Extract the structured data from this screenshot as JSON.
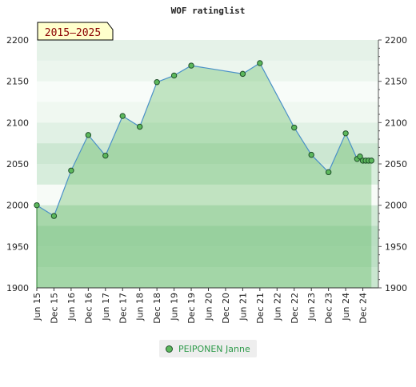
{
  "chart_data": {
    "type": "area",
    "title": "WOF ratinglist",
    "period_label": "2015–2025",
    "ylim": [
      1900,
      2200
    ],
    "y_ticks": [
      1900,
      1950,
      2000,
      2050,
      2100,
      2150,
      2200
    ],
    "x_tick_labels": [
      "Jun 15",
      "Dec 15",
      "Jun 16",
      "Dec 16",
      "Jun 17",
      "Dec 17",
      "Jun 18",
      "Dec 18",
      "Jun 19",
      "Dec 19",
      "Jun 20",
      "Dec 20",
      "Jun 21",
      "Dec 21",
      "Jun 22",
      "Dec 22",
      "Jun 23",
      "Dec 23",
      "Jun 24",
      "Dec 24"
    ],
    "legend_position": "bottom-center",
    "series": [
      {
        "name": "PEIPONEN Janne",
        "color": "#5cb85c",
        "line_color": "#4a90c8",
        "points": [
          {
            "x": "Jun 15",
            "y": 2000
          },
          {
            "x": "Dec 15",
            "y": 1987
          },
          {
            "x": "Jun 16",
            "y": 2042
          },
          {
            "x": "Dec 16",
            "y": 2085
          },
          {
            "x": "Jun 17",
            "y": 2060
          },
          {
            "x": "Dec 17",
            "y": 2108
          },
          {
            "x": "Jun 18",
            "y": 2095
          },
          {
            "x": "Dec 18",
            "y": 2149
          },
          {
            "x": "Jun 19",
            "y": 2157
          },
          {
            "x": "Dec 19",
            "y": 2169
          },
          {
            "x": "Jun 21",
            "y": 2159
          },
          {
            "x": "Dec 21",
            "y": 2172
          },
          {
            "x": "Dec 22",
            "y": 2094
          },
          {
            "x": "Jun 23",
            "y": 2061
          },
          {
            "x": "Dec 23",
            "y": 2040
          },
          {
            "x": "Jun 24",
            "y": 2087
          },
          {
            "x": "Oct 24",
            "y": 2056
          },
          {
            "x": "Nov 24",
            "y": 2059
          },
          {
            "x": "Dec 24",
            "y": 2054
          },
          {
            "x": "Jan 25",
            "y": 2054
          },
          {
            "x": "Feb 25",
            "y": 2054
          },
          {
            "x": "Mar 25",
            "y": 2054
          }
        ]
      }
    ]
  }
}
